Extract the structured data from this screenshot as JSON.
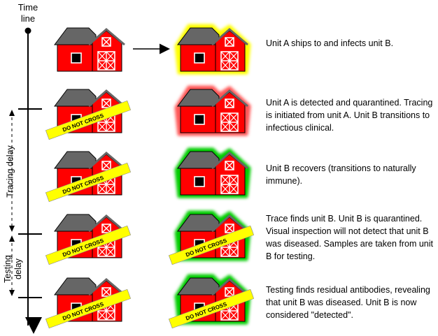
{
  "timeline": {
    "label": "Time line"
  },
  "delays": {
    "tracing": "Tracing delay",
    "testing": "Testing delay"
  },
  "tape_text": "DO NOT CROSS",
  "colors": {
    "barn": "#ff0000",
    "roof": "#666666",
    "yellow": "#ffff00",
    "green": "#00cc00",
    "red_glow": "#ff5555"
  },
  "rows": [
    {
      "left_tape": false,
      "right_glow": "yellow",
      "right_tape": false,
      "text": "Unit A ships to and infects unit B."
    },
    {
      "left_tape": true,
      "right_glow": "red",
      "right_tape": false,
      "text": "Unit A is detected and quarantined. Tracing is initiated from unit A.  Unit B transitions to infectious clinical."
    },
    {
      "left_tape": true,
      "right_glow": "green",
      "right_tape": false,
      "text": "Unit B recovers (transitions to naturally immune)."
    },
    {
      "left_tape": true,
      "right_glow": "green",
      "right_tape": true,
      "text": "Trace finds unit B.  Unit B is quarantined. Visual inspection will not detect that unit B was diseased.  Samples are taken from unit B for testing."
    },
    {
      "left_tape": true,
      "right_glow": "green",
      "right_tape": true,
      "text": "Testing finds residual antibodies, revealing that unit B was diseased.  Unit B is now considered \"detected\"."
    }
  ]
}
